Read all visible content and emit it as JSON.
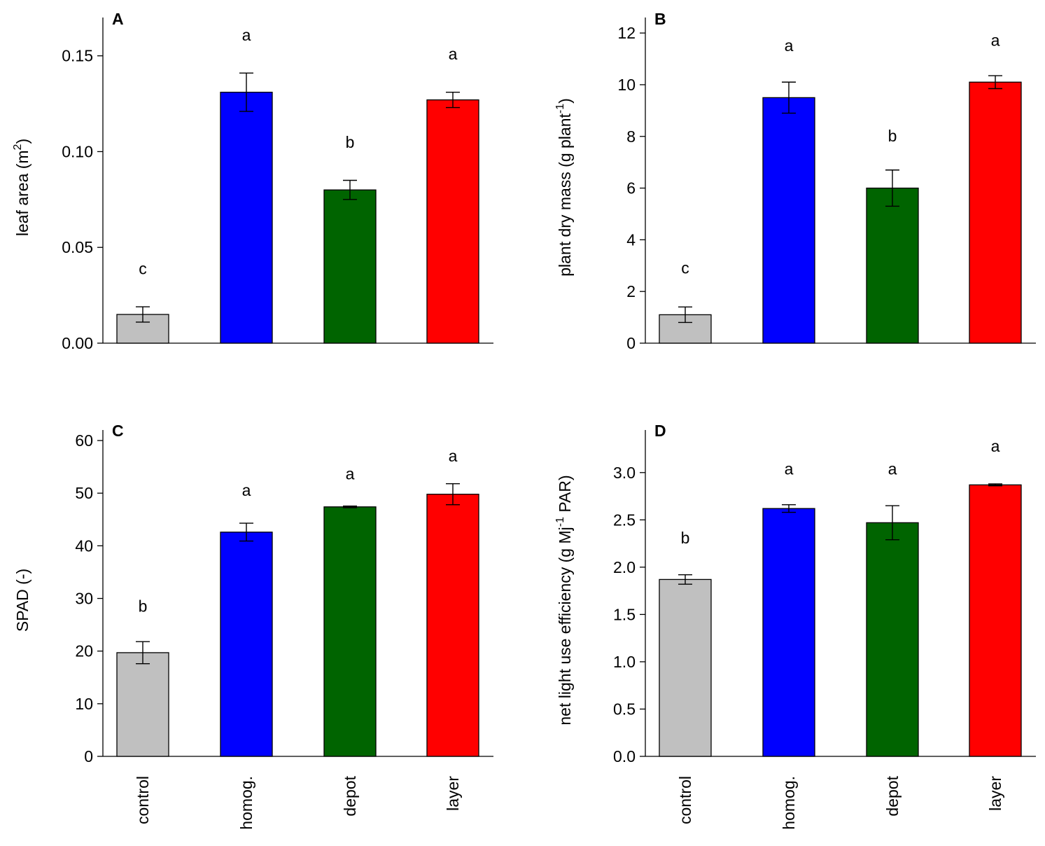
{
  "chart_data": [
    {
      "type": "bar",
      "panel": "A",
      "title": "",
      "ylabel": "leaf area (m",
      "ylabel_sup": "2",
      "ylabel_tail": ")",
      "categories": [
        "control",
        "homog.",
        "depot",
        "layer"
      ],
      "values": [
        0.015,
        0.131,
        0.08,
        0.127
      ],
      "errors": [
        0.004,
        0.01,
        0.005,
        0.004
      ],
      "letters": [
        "c",
        "a",
        "b",
        "a"
      ],
      "letter_values": [
        0.036,
        0.158,
        0.102,
        0.148
      ],
      "ylim": [
        0,
        0.17
      ],
      "yticks": [
        0.0,
        0.05,
        0.1,
        0.15
      ],
      "ytick_labels": [
        "0.00",
        "0.05",
        "0.10",
        "0.15"
      ],
      "colors": [
        "#c0c0c0",
        "#0000ff",
        "#006400",
        "#ff0000"
      ]
    },
    {
      "type": "bar",
      "panel": "B",
      "title": "",
      "ylabel": "plant dry mass (g plant",
      "ylabel_sup": "-1",
      "ylabel_tail": ")",
      "categories": [
        "control",
        "homog.",
        "depot",
        "layer"
      ],
      "values": [
        1.1,
        9.5,
        6.0,
        10.1
      ],
      "errors": [
        0.3,
        0.6,
        0.7,
        0.25
      ],
      "letters": [
        "c",
        "a",
        "b",
        "a"
      ],
      "letter_values": [
        2.7,
        11.3,
        7.8,
        11.5
      ],
      "ylim": [
        0,
        12.6
      ],
      "yticks": [
        0,
        2,
        4,
        6,
        8,
        10,
        12
      ],
      "ytick_labels": [
        "0",
        "2",
        "4",
        "6",
        "8",
        "10",
        "12"
      ],
      "colors": [
        "#c0c0c0",
        "#0000ff",
        "#006400",
        "#ff0000"
      ]
    },
    {
      "type": "bar",
      "panel": "C",
      "title": "",
      "ylabel": "SPAD (-)",
      "ylabel_sup": "",
      "ylabel_tail": "",
      "categories": [
        "control",
        "homog.",
        "depot",
        "layer"
      ],
      "values": [
        19.7,
        42.6,
        47.4,
        49.8
      ],
      "errors": [
        2.1,
        1.7,
        0.15,
        2.0
      ],
      "letters": [
        "b",
        "a",
        "a",
        "a"
      ],
      "letter_values": [
        27.5,
        49.5,
        52.6,
        56.0
      ],
      "ylim": [
        0,
        62
      ],
      "yticks": [
        0,
        10,
        20,
        30,
        40,
        50,
        60
      ],
      "ytick_labels": [
        "0",
        "10",
        "20",
        "30",
        "40",
        "50",
        "60"
      ],
      "colors": [
        "#c0c0c0",
        "#0000ff",
        "#006400",
        "#ff0000"
      ]
    },
    {
      "type": "bar",
      "panel": "D",
      "title": "",
      "ylabel": "net light use efficiency (g Mj",
      "ylabel_sup": "-1",
      "ylabel_tail": " PAR)",
      "categories": [
        "control",
        "homog.",
        "depot",
        "layer"
      ],
      "values": [
        1.87,
        2.62,
        2.47,
        2.87
      ],
      "errors": [
        0.05,
        0.04,
        0.18,
        0.01
      ],
      "letters": [
        "b",
        "a",
        "a",
        "a"
      ],
      "letter_values": [
        2.25,
        2.98,
        2.98,
        3.22
      ],
      "ylim": [
        0,
        3.45
      ],
      "yticks": [
        0.0,
        0.5,
        1.0,
        1.5,
        2.0,
        2.5,
        3.0
      ],
      "ytick_labels": [
        "0.0",
        "0.5",
        "1.0",
        "1.5",
        "2.0",
        "2.5",
        "3.0"
      ],
      "colors": [
        "#c0c0c0",
        "#0000ff",
        "#006400",
        "#ff0000"
      ]
    }
  ]
}
